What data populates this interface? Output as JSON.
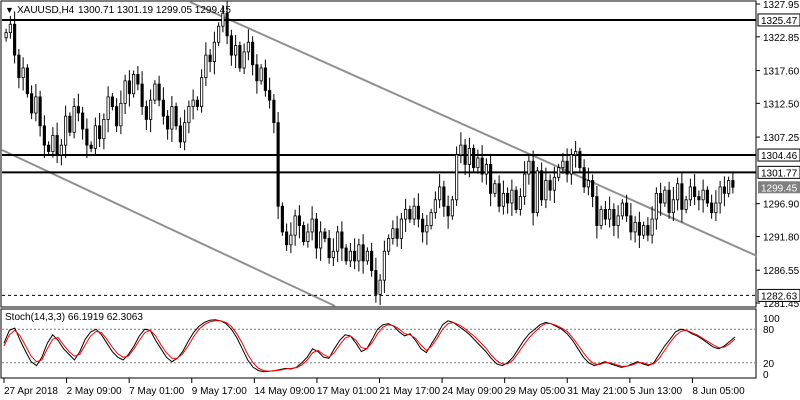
{
  "header": {
    "arrow": "▼",
    "symbol": "XAUUSD,H4",
    "ohlc": "1300.71 1301.19 1299.05 1299.45"
  },
  "chart_data": {
    "type": "candlestick",
    "symbol": "XAUUSD",
    "timeframe": "H4",
    "price_axis": {
      "range": [
        1281.45,
        1327.95
      ],
      "ticks": [
        1327.95,
        1322.85,
        1317.6,
        1312.5,
        1307.25,
        1296.9,
        1291.8,
        1286.55,
        1281.45
      ]
    },
    "levels": [
      {
        "value": 1325.47,
        "label": "1325.47",
        "style": "solid",
        "color": "#000000"
      },
      {
        "value": 1304.46,
        "label": "1304.46",
        "style": "solid",
        "color": "#000000"
      },
      {
        "value": 1301.77,
        "label": "1301.77",
        "style": "solid",
        "color": "#000000"
      },
      {
        "value": 1282.63,
        "label": "1282.63",
        "style": "dashed",
        "color": "#000000"
      }
    ],
    "current_price": {
      "value": 1299.45,
      "label": "1299.45",
      "color": "#808080"
    },
    "time_axis": {
      "labels": [
        "27 Apr 2018",
        "2 May 09:00",
        "7 May 01:00",
        "9 May 17:00",
        "14 May 09:00",
        "17 May 01:00",
        "21 May 17:00",
        "24 May 09:00",
        "29 May 05:00",
        "31 May 21:00",
        "5 Jun 13:00",
        "8 Jun 05:00"
      ]
    },
    "closes": [
      1323.5,
      1324.8,
      1320.0,
      1316.5,
      1318.0,
      1314.0,
      1311.0,
      1313.5,
      1309.0,
      1306.0,
      1305.0,
      1307.5,
      1304.5,
      1306.0,
      1310.5,
      1308.0,
      1312.0,
      1311.0,
      1308.5,
      1306.0,
      1305.5,
      1309.0,
      1307.0,
      1310.0,
      1313.5,
      1312.0,
      1309.0,
      1312.5,
      1316.0,
      1314.0,
      1317.0,
      1315.5,
      1312.0,
      1310.0,
      1313.0,
      1315.5,
      1313.0,
      1310.5,
      1308.5,
      1312.0,
      1309.0,
      1306.5,
      1309.5,
      1312.0,
      1313.0,
      1312.0,
      1316.5,
      1320.0,
      1319.0,
      1322.0,
      1324.5,
      1326.5,
      1323.0,
      1320.0,
      1321.5,
      1318.0,
      1320.5,
      1322.0,
      1318.5,
      1316.0,
      1318.0,
      1314.5,
      1313.0,
      1309.5,
      1296.5,
      1292.5,
      1290.5,
      1292.0,
      1295.0,
      1293.5,
      1291.0,
      1292.5,
      1294.5,
      1290.0,
      1292.5,
      1291.5,
      1288.5,
      1289.5,
      1292.5,
      1290.0,
      1288.0,
      1289.5,
      1288.0,
      1290.5,
      1288.0,
      1289.5,
      1286.5,
      1282.8,
      1285.0,
      1289.5,
      1291.5,
      1293.0,
      1291.5,
      1294.5,
      1296.0,
      1294.5,
      1296.5,
      1294.5,
      1292.5,
      1293.5,
      1295.5,
      1297.5,
      1299.5,
      1296.5,
      1295.0,
      1297.5,
      1304.5,
      1306.0,
      1303.0,
      1305.5,
      1302.5,
      1304.0,
      1301.5,
      1303.0,
      1298.5,
      1300.0,
      1296.5,
      1298.5,
      1297.0,
      1299.0,
      1296.0,
      1298.0,
      1301.5,
      1303.5,
      1295.5,
      1302.0,
      1297.5,
      1300.5,
      1299.0,
      1301.0,
      1302.5,
      1303.5,
      1301.5,
      1304.5,
      1305.0,
      1302.5,
      1299.5,
      1300.5,
      1298.0,
      1293.5,
      1296.0,
      1294.5,
      1296.0,
      1293.5,
      1295.0,
      1297.0,
      1295.0,
      1292.5,
      1294.0,
      1292.0,
      1293.5,
      1292.0,
      1294.5,
      1298.5,
      1297.0,
      1299.0,
      1295.5,
      1297.5,
      1300.0,
      1296.0,
      1297.5,
      1299.5,
      1298.0,
      1297.5,
      1299.0,
      1297.0,
      1295.5,
      1297.0,
      1299.5,
      1298.5,
      1300.5,
      1299.45
    ]
  },
  "stoch": {
    "label": "Stoch(14,3,3) 66.1919 62.3063",
    "ticks": [
      "100",
      "80",
      "20",
      "0"
    ],
    "range": [
      0,
      100
    ],
    "levels": [
      80,
      20
    ],
    "main": [
      55,
      78,
      82,
      60,
      40,
      22,
      15,
      30,
      55,
      70,
      60,
      45,
      35,
      25,
      40,
      62,
      75,
      80,
      70,
      55,
      40,
      30,
      25,
      35,
      50,
      68,
      80,
      78,
      60,
      45,
      30,
      22,
      28,
      40,
      58,
      74,
      85,
      92,
      96,
      97,
      95,
      90,
      80,
      65,
      45,
      25,
      12,
      6,
      4,
      5,
      6,
      8,
      10,
      9,
      12,
      20,
      30,
      45,
      40,
      30,
      28,
      45,
      60,
      70,
      68,
      55,
      40,
      45,
      62,
      80,
      88,
      90,
      85,
      75,
      68,
      72,
      60,
      45,
      38,
      55,
      70,
      88,
      95,
      92,
      85,
      78,
      70,
      60,
      50,
      40,
      28,
      18,
      15,
      20,
      30,
      45,
      60,
      72,
      80,
      88,
      92,
      90,
      85,
      80,
      72,
      60,
      45,
      30,
      20,
      15,
      18,
      22,
      18,
      15,
      12,
      14,
      18,
      22,
      18,
      15,
      20,
      35,
      50,
      62,
      75,
      80,
      78,
      72,
      68,
      62,
      55,
      48,
      45,
      50,
      58,
      66
    ],
    "signal": [
      50,
      70,
      78,
      68,
      50,
      32,
      22,
      25,
      45,
      62,
      65,
      52,
      40,
      32,
      35,
      52,
      68,
      76,
      74,
      62,
      48,
      36,
      30,
      32,
      45,
      60,
      74,
      78,
      68,
      52,
      38,
      28,
      28,
      36,
      50,
      66,
      80,
      88,
      93,
      95,
      95,
      92,
      85,
      72,
      55,
      35,
      20,
      10,
      6,
      5,
      6,
      7,
      9,
      10,
      11,
      16,
      25,
      38,
      42,
      35,
      30,
      38,
      52,
      64,
      68,
      60,
      47,
      45,
      56,
      72,
      84,
      88,
      86,
      80,
      72,
      70,
      64,
      52,
      42,
      50,
      64,
      80,
      90,
      92,
      88,
      82,
      74,
      66,
      56,
      46,
      34,
      24,
      18,
      18,
      25,
      38,
      52,
      65,
      75,
      84,
      90,
      90,
      87,
      82,
      76,
      65,
      52,
      38,
      26,
      18,
      17,
      20,
      20,
      17,
      14,
      14,
      16,
      20,
      20,
      17,
      18,
      28,
      42,
      56,
      68,
      76,
      78,
      74,
      70,
      64,
      58,
      52,
      47,
      48,
      54,
      62.3
    ]
  },
  "colors": {
    "background": "#ffffff",
    "candle": "#000000",
    "bull_fill": "#ffffff",
    "bear_fill": "#000000",
    "stoch_main": "#000000",
    "stoch_signal": "#ff0000",
    "trendline": "#909090",
    "axis": "#000000",
    "text": "#000000"
  }
}
